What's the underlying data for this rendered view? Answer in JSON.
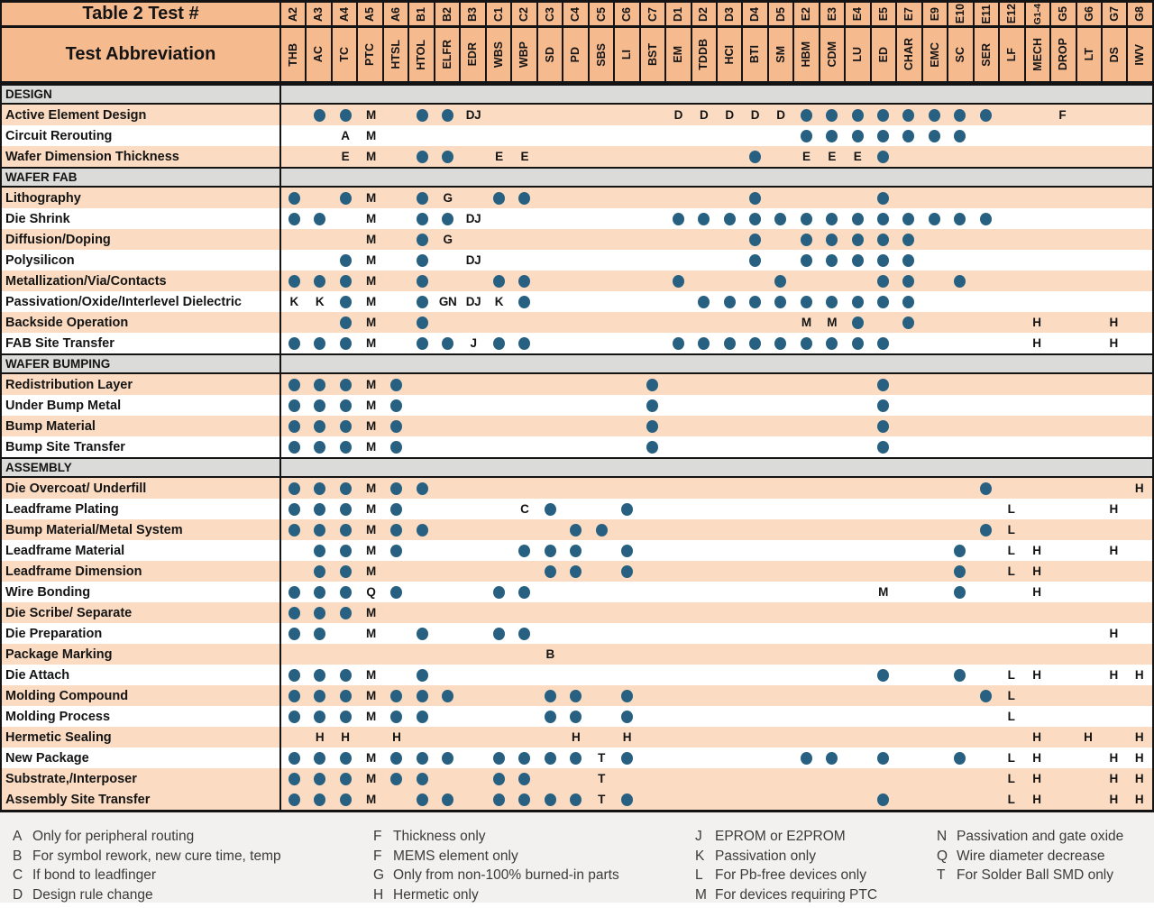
{
  "title_cell": "Table 2 Test #",
  "abbr_cell": "Test Abbreviation",
  "colors": {
    "header_peach": "#F6BA8F",
    "row_peach": "#FBDCC2",
    "row_white": "#FFFFFF",
    "section_gray": "#DBDBD9",
    "dot_blue": "#276080",
    "border_black": "#141414",
    "legend_bg": "#F2F1EF",
    "legend_text": "#3b3b3b"
  },
  "columns": [
    {
      "test": "A2",
      "abbr": "THB"
    },
    {
      "test": "A3",
      "abbr": "AC"
    },
    {
      "test": "A4",
      "abbr": "TC"
    },
    {
      "test": "A5",
      "abbr": "PTC"
    },
    {
      "test": "A6",
      "abbr": "HTSL"
    },
    {
      "test": "B1",
      "abbr": "HTOL"
    },
    {
      "test": "B2",
      "abbr": "ELFR"
    },
    {
      "test": "B3",
      "abbr": "EDR"
    },
    {
      "test": "C1",
      "abbr": "WBS"
    },
    {
      "test": "C2",
      "abbr": "WBP"
    },
    {
      "test": "C3",
      "abbr": "SD"
    },
    {
      "test": "C4",
      "abbr": "PD"
    },
    {
      "test": "C5",
      "abbr": "SBS"
    },
    {
      "test": "C6",
      "abbr": "LI"
    },
    {
      "test": "C7",
      "abbr": "BST"
    },
    {
      "test": "D1",
      "abbr": "EM"
    },
    {
      "test": "D2",
      "abbr": "TDDB"
    },
    {
      "test": "D3",
      "abbr": "HCI"
    },
    {
      "test": "D4",
      "abbr": "BTI"
    },
    {
      "test": "D5",
      "abbr": "SM"
    },
    {
      "test": "E2",
      "abbr": "HBM"
    },
    {
      "test": "E3",
      "abbr": "CDM"
    },
    {
      "test": "E4",
      "abbr": "LU"
    },
    {
      "test": "E5",
      "abbr": "ED"
    },
    {
      "test": "E7",
      "abbr": "CHAR"
    },
    {
      "test": "E9",
      "abbr": "EMC"
    },
    {
      "test": "E10",
      "abbr": "SC"
    },
    {
      "test": "E11",
      "abbr": "SER"
    },
    {
      "test": "E12",
      "abbr": "LF"
    },
    {
      "test": "G1-4",
      "abbr": "MECH"
    },
    {
      "test": "G5",
      "abbr": "DROP"
    },
    {
      "test": "G6",
      "abbr": "LT"
    },
    {
      "test": "G7",
      "abbr": "DS"
    },
    {
      "test": "G8",
      "abbr": "IWV"
    }
  ],
  "sections": [
    {
      "name": "DESIGN",
      "rows": [
        {
          "label": "Active Element Design",
          "shade": "peach",
          "cells": {
            "A3": ".",
            "A4": ".",
            "A5": "M",
            "B1": ".",
            "B2": ".",
            "B3": "DJ",
            "D1": "D",
            "D2": "D",
            "D3": "D",
            "D4": "D",
            "D5": "D",
            "E2": ".",
            "E3": ".",
            "E4": ".",
            "E5": ".",
            "E7": ".",
            "E9": ".",
            "E10": ".",
            "E11": ".",
            "G5": "F"
          }
        },
        {
          "label": "Circuit Rerouting",
          "shade": "white",
          "cells": {
            "A4": "A",
            "A5": "M",
            "E2": ".",
            "E3": ".",
            "E4": ".",
            "E5": ".",
            "E7": ".",
            "E9": ".",
            "E10": "."
          }
        },
        {
          "label": "Wafer Dimension Thickness",
          "shade": "peach",
          "cells": {
            "A4": "E",
            "A5": "M",
            "B1": ".",
            "B2": ".",
            "C1": "E",
            "C2": "E",
            "D4": ".",
            "E2": "E",
            "E3": "E",
            "E4": "E",
            "E5": "."
          }
        }
      ]
    },
    {
      "name": "WAFER FAB",
      "rows": [
        {
          "label": "Lithography",
          "shade": "peach",
          "cells": {
            "A2": ".",
            "A4": ".",
            "A5": "M",
            "B1": ".",
            "B2": "G",
            "C1": ".",
            "C2": ".",
            "D4": ".",
            "E5": "."
          }
        },
        {
          "label": "Die Shrink",
          "shade": "white",
          "cells": {
            "A2": ".",
            "A3": ".",
            "A5": "M",
            "B1": ".",
            "B2": ".",
            "B3": "DJ",
            "D1": ".",
            "D2": ".",
            "D3": ".",
            "D4": ".",
            "D5": ".",
            "E2": ".",
            "E3": ".",
            "E4": ".",
            "E5": ".",
            "E7": ".",
            "E9": ".",
            "E10": ".",
            "E11": "."
          }
        },
        {
          "label": "Diffusion/Doping",
          "shade": "peach",
          "cells": {
            "A5": "M",
            "B1": ".",
            "B2": "G",
            "D4": ".",
            "E2": ".",
            "E3": ".",
            "E4": ".",
            "E5": ".",
            "E7": "."
          }
        },
        {
          "label": "Polysilicon",
          "shade": "white",
          "cells": {
            "A4": ".",
            "A5": "M",
            "B1": ".",
            "B3": "DJ",
            "D4": ".",
            "E2": ".",
            "E3": ".",
            "E4": ".",
            "E5": ".",
            "E7": "."
          }
        },
        {
          "label": "Metallization/Via/Contacts",
          "shade": "peach",
          "cells": {
            "A2": ".",
            "A3": ".",
            "A4": ".",
            "A5": "M",
            "B1": ".",
            "C1": ".",
            "C2": ".",
            "D1": ".",
            "D5": ".",
            "E5": ".",
            "E7": ".",
            "E10": "."
          }
        },
        {
          "label": "Passivation/Oxide/Interlevel Dielectric",
          "shade": "white",
          "cells": {
            "A2": "K",
            "A3": "K",
            "A4": ".",
            "A5": "M",
            "B1": ".",
            "B2": "GN",
            "B3": "DJ",
            "C1": "K",
            "C2": ".",
            "D2": ".",
            "D3": ".",
            "D4": ".",
            "D5": ".",
            "E2": ".",
            "E3": ".",
            "E4": ".",
            "E5": ".",
            "E7": "."
          }
        },
        {
          "label": "Backside Operation",
          "shade": "peach",
          "cells": {
            "A4": ".",
            "A5": "M",
            "B1": ".",
            "E2": "M",
            "E3": "M",
            "E4": ".",
            "E7": ".",
            "G1-4": "H",
            "G7": "H"
          }
        },
        {
          "label": "FAB Site Transfer",
          "shade": "white",
          "cells": {
            "A2": ".",
            "A3": ".",
            "A4": ".",
            "A5": "M",
            "B1": ".",
            "B2": ".",
            "B3": "J",
            "C1": ".",
            "C2": ".",
            "D1": ".",
            "D2": ".",
            "D3": ".",
            "D4": ".",
            "D5": ".",
            "E2": ".",
            "E3": ".",
            "E4": ".",
            "E5": ".",
            "G1-4": "H",
            "G7": "H"
          }
        }
      ]
    },
    {
      "name": "WAFER BUMPING",
      "rows": [
        {
          "label": "Redistribution Layer",
          "shade": "peach",
          "cells": {
            "A2": ".",
            "A3": ".",
            "A4": ".",
            "A5": "M",
            "A6": ".",
            "C7": ".",
            "E5": "."
          }
        },
        {
          "label": "Under Bump Metal",
          "shade": "white",
          "cells": {
            "A2": ".",
            "A3": ".",
            "A4": ".",
            "A5": "M",
            "A6": ".",
            "C7": ".",
            "E5": "."
          }
        },
        {
          "label": "Bump Material",
          "shade": "peach",
          "cells": {
            "A2": ".",
            "A3": ".",
            "A4": ".",
            "A5": "M",
            "A6": ".",
            "C7": ".",
            "E5": "."
          }
        },
        {
          "label": "Bump Site Transfer",
          "shade": "white",
          "cells": {
            "A2": ".",
            "A3": ".",
            "A4": ".",
            "A5": "M",
            "A6": ".",
            "C7": ".",
            "E5": "."
          }
        }
      ]
    },
    {
      "name": "ASSEMBLY",
      "rows": [
        {
          "label": "Die Overcoat/ Underfill",
          "shade": "peach",
          "cells": {
            "A2": ".",
            "A3": ".",
            "A4": ".",
            "A5": "M",
            "A6": ".",
            "B1": ".",
            "E11": ".",
            "G8": "H"
          }
        },
        {
          "label": "Leadframe Plating",
          "shade": "white",
          "cells": {
            "A2": ".",
            "A3": ".",
            "A4": ".",
            "A5": "M",
            "A6": ".",
            "C2": "C",
            "C3": ".",
            "C6": ".",
            "E12": "L",
            "G7": "H"
          }
        },
        {
          "label": "Bump Material/Metal System",
          "shade": "peach",
          "cells": {
            "A2": ".",
            "A3": ".",
            "A4": ".",
            "A5": "M",
            "A6": ".",
            "B1": ".",
            "C4": ".",
            "C5": ".",
            "E11": ".",
            "E12": "L"
          }
        },
        {
          "label": "Leadframe Material",
          "shade": "white",
          "cells": {
            "A3": ".",
            "A4": ".",
            "A5": "M",
            "A6": ".",
            "C2": ".",
            "C3": ".",
            "C4": ".",
            "C6": ".",
            "E10": ".",
            "E12": "L",
            "G1-4": "H",
            "G7": "H"
          }
        },
        {
          "label": "Leadframe Dimension",
          "shade": "peach",
          "cells": {
            "A3": ".",
            "A4": ".",
            "A5": "M",
            "C3": ".",
            "C4": ".",
            "C6": ".",
            "E10": ".",
            "E12": "L",
            "G1-4": "H"
          }
        },
        {
          "label": "Wire Bonding",
          "shade": "white",
          "cells": {
            "A2": ".",
            "A3": ".",
            "A4": ".",
            "A5": "Q",
            "A6": ".",
            "C1": ".",
            "C2": ".",
            "E5": "M",
            "E10": ".",
            "G1-4": "H"
          }
        },
        {
          "label": "Die Scribe/ Separate",
          "shade": "peach",
          "cells": {
            "A2": ".",
            "A3": ".",
            "A4": ".",
            "A5": "M"
          }
        },
        {
          "label": "Die Preparation",
          "shade": "white",
          "cells": {
            "A2": ".",
            "A3": ".",
            "A5": "M",
            "B1": ".",
            "C1": ".",
            "C2": ".",
            "G7": "H"
          }
        },
        {
          "label": "Package Marking",
          "shade": "peach",
          "cells": {
            "C3": "B"
          }
        },
        {
          "label": "Die Attach",
          "shade": "white",
          "cells": {
            "A2": ".",
            "A3": ".",
            "A4": ".",
            "A5": "M",
            "B1": ".",
            "E5": ".",
            "E10": ".",
            "E12": "L",
            "G1-4": "H",
            "G7": "H",
            "G8": "H"
          }
        },
        {
          "label": "Molding Compound",
          "shade": "peach",
          "cells": {
            "A2": ".",
            "A3": ".",
            "A4": ".",
            "A5": "M",
            "A6": ".",
            "B1": ".",
            "B2": ".",
            "C3": ".",
            "C4": ".",
            "C6": ".",
            "E11": ".",
            "E12": "L"
          }
        },
        {
          "label": "Molding Process",
          "shade": "white",
          "cells": {
            "A2": ".",
            "A3": ".",
            "A4": ".",
            "A5": "M",
            "A6": ".",
            "B1": ".",
            "C3": ".",
            "C4": ".",
            "C6": ".",
            "E12": "L"
          }
        },
        {
          "label": "Hermetic Sealing",
          "shade": "peach",
          "cells": {
            "A3": "H",
            "A4": "H",
            "A6": "H",
            "C4": "H",
            "C6": "H",
            "G1-4": "H",
            "G6": "H",
            "G8": "H"
          }
        },
        {
          "label": "New Package",
          "shade": "white",
          "cells": {
            "A2": ".",
            "A3": ".",
            "A4": ".",
            "A5": "M",
            "A6": ".",
            "B1": ".",
            "B2": ".",
            "C1": ".",
            "C2": ".",
            "C3": ".",
            "C4": ".",
            "C5": "T",
            "C6": ".",
            "E2": ".",
            "E3": ".",
            "E5": ".",
            "E10": ".",
            "E12": "L",
            "G1-4": "H",
            "G7": "H",
            "G8": "H"
          }
        },
        {
          "label": "Substrate,/Interposer",
          "shade": "peach",
          "cells": {
            "A2": ".",
            "A3": ".",
            "A4": ".",
            "A5": "M",
            "A6": ".",
            "B1": ".",
            "C1": ".",
            "C2": ".",
            "C5": "T",
            "E12": "L",
            "G1-4": "H",
            "G7": "H",
            "G8": "H"
          }
        },
        {
          "label": "Assembly Site Transfer",
          "shade": "peach",
          "cells": {
            "A2": ".",
            "A3": ".",
            "A4": ".",
            "A5": "M",
            "B1": ".",
            "B2": ".",
            "C1": ".",
            "C2": ".",
            "C3": ".",
            "C4": ".",
            "C5": "T",
            "C6": ".",
            "E5": ".",
            "E12": "L",
            "G1-4": "H",
            "G7": "H",
            "G8": "H"
          }
        }
      ]
    }
  ],
  "legend": {
    "col1": [
      {
        "key": "A",
        "text": "Only for peripheral routing"
      },
      {
        "key": "B",
        "text": "For symbol rework, new cure time, temp"
      },
      {
        "key": "C",
        "text": "If bond to leadfinger"
      },
      {
        "key": "D",
        "text": "Design rule change"
      }
    ],
    "col2": [
      {
        "key": "F",
        "text": "Thickness only"
      },
      {
        "key": "F",
        "text": "MEMS element only"
      },
      {
        "key": "G",
        "text": "Only from non-100% burned-in parts"
      },
      {
        "key": "H",
        "text": "Hermetic only"
      }
    ],
    "col3": [
      {
        "key": "J",
        "text": "EPROM or E2PROM"
      },
      {
        "key": "K",
        "text": "Passivation only"
      },
      {
        "key": "L",
        "text": "For Pb-free devices only"
      },
      {
        "key": "M",
        "text": "For devices requiring PTC"
      }
    ],
    "col4": [
      {
        "key": "N",
        "text": "Passivation and gate oxide"
      },
      {
        "key": "Q",
        "text": "Wire diameter decrease"
      },
      {
        "key": "T",
        "text": "For Solder Ball SMD only"
      }
    ]
  }
}
